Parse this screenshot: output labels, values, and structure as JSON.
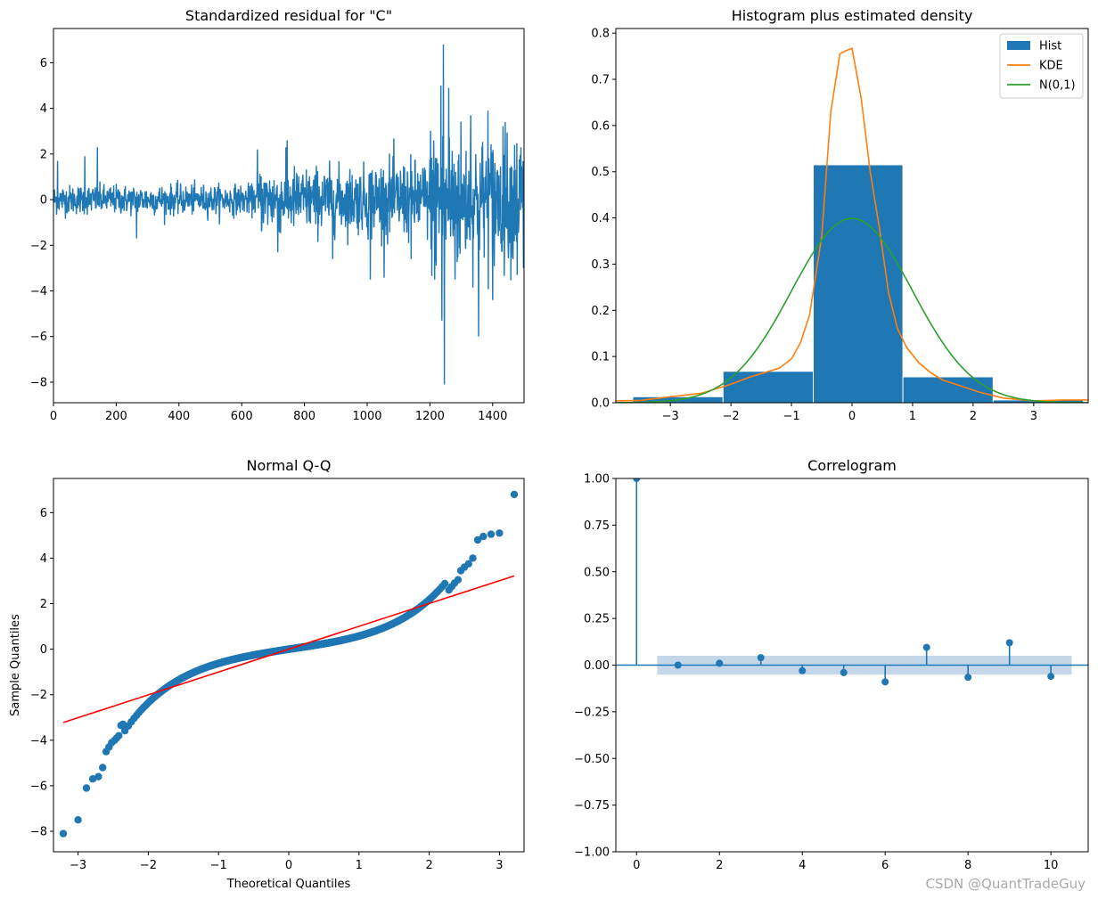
{
  "watermark": "CSDN @QuantTradeGuy",
  "chart_data": [
    {
      "type": "line",
      "title": "Standardized residual for \"C\"",
      "xlim": [
        0,
        1500
      ],
      "ylim": [
        -8.9,
        7.5
      ],
      "xticks": [
        0,
        200,
        400,
        600,
        800,
        1000,
        1200,
        1400
      ],
      "yticks": [
        -8,
        -6,
        -4,
        -2,
        0,
        2,
        4,
        6
      ],
      "color": "#1f77b4",
      "n_points": 1500,
      "notable_points": [
        {
          "x": 13,
          "y": 1.7
        },
        {
          "x": 100,
          "y": 1.9
        },
        {
          "x": 140,
          "y": 2.3
        },
        {
          "x": 265,
          "y": -1.7
        },
        {
          "x": 650,
          "y": 2.2
        },
        {
          "x": 715,
          "y": -2.3
        },
        {
          "x": 745,
          "y": 2.6
        },
        {
          "x": 890,
          "y": -2.6
        },
        {
          "x": 1010,
          "y": -3.5
        },
        {
          "x": 1140,
          "y": -2.6
        },
        {
          "x": 1215,
          "y": -3.5
        },
        {
          "x": 1235,
          "y": 5.0
        },
        {
          "x": 1238,
          "y": -5.3
        },
        {
          "x": 1243,
          "y": 6.8
        },
        {
          "x": 1246,
          "y": -8.1
        },
        {
          "x": 1260,
          "y": 4.9
        },
        {
          "x": 1280,
          "y": -3.5
        },
        {
          "x": 1330,
          "y": 3.7
        },
        {
          "x": 1355,
          "y": -6.0
        },
        {
          "x": 1385,
          "y": 3.9
        },
        {
          "x": 1400,
          "y": -4.4
        },
        {
          "x": 1440,
          "y": 3.4
        },
        {
          "x": 1470,
          "y": 2.4
        },
        {
          "x": 1478,
          "y": -3.3
        },
        {
          "x": 1490,
          "y": 2.3
        },
        {
          "x": 1498,
          "y": -3.0
        }
      ]
    },
    {
      "type": "bar",
      "title": "Histogram plus estimated density",
      "xlim": [
        -3.9,
        3.9
      ],
      "ylim": [
        0,
        0.81
      ],
      "xticks": [
        -3,
        -2,
        -1,
        0,
        1,
        2,
        3
      ],
      "yticks": [
        0.0,
        0.1,
        0.2,
        0.3,
        0.4,
        0.5,
        0.6,
        0.7,
        0.8
      ],
      "bins": [
        {
          "left": -3.62,
          "right": -2.13,
          "value": 0.013
        },
        {
          "left": -2.13,
          "right": -0.64,
          "value": 0.068
        },
        {
          "left": -0.64,
          "right": 0.84,
          "value": 0.515
        },
        {
          "left": 0.84,
          "right": 2.33,
          "value": 0.056
        },
        {
          "left": 2.33,
          "right": 3.82,
          "value": 0.006
        }
      ],
      "legend": [
        "Hist",
        "KDE",
        "N(0,1)"
      ],
      "legend_position": "upper right",
      "series": [
        {
          "name": "KDE",
          "color": "#ff7f0e",
          "x": [
            -3.9,
            -3.5,
            -3.0,
            -2.5,
            -2.0,
            -1.7,
            -1.5,
            -1.2,
            -1.0,
            -0.85,
            -0.7,
            -0.5,
            -0.35,
            -0.2,
            -0.1,
            0.0,
            0.15,
            0.3,
            0.45,
            0.6,
            0.75,
            0.9,
            1.1,
            1.3,
            1.5,
            1.8,
            2.1,
            2.5,
            3.0,
            3.5,
            3.9
          ],
          "y": [
            0.004,
            0.005,
            0.013,
            0.02,
            0.04,
            0.055,
            0.063,
            0.075,
            0.095,
            0.13,
            0.19,
            0.36,
            0.63,
            0.755,
            0.762,
            0.767,
            0.66,
            0.5,
            0.38,
            0.24,
            0.16,
            0.12,
            0.087,
            0.065,
            0.049,
            0.036,
            0.023,
            0.01,
            0.004,
            0.006,
            0.006
          ]
        },
        {
          "name": "N(0,1)",
          "color": "#2ca02c",
          "distribution": "standard normal density"
        }
      ]
    },
    {
      "type": "scatter",
      "title": "Normal Q-Q",
      "xlabel": "Theoretical Quantiles",
      "ylabel": "Sample Quantiles",
      "xlim": [
        -3.35,
        3.35
      ],
      "ylim": [
        -8.9,
        7.5
      ],
      "xticks": [
        -3,
        -2,
        -1,
        0,
        1,
        2,
        3
      ],
      "yticks": [
        -8,
        -6,
        -4,
        -2,
        0,
        2,
        4,
        6
      ],
      "marker_color": "#1f77b4",
      "reference_line": {
        "color": "#ff0000",
        "x": [
          -3.21,
          3.21
        ],
        "y": [
          -3.22,
          3.22
        ]
      },
      "tail_points": {
        "x": [
          -3.21,
          -3.0,
          -2.88,
          -2.79,
          -2.71,
          -2.65,
          -2.6,
          -2.56,
          -2.52,
          -2.48,
          -2.45,
          -2.42,
          -2.39,
          -2.36,
          2.28,
          2.32,
          2.36,
          2.41,
          2.45,
          2.5,
          2.56,
          2.62,
          2.69,
          2.77,
          2.88,
          3.0,
          3.21
        ],
        "y": [
          -8.1,
          -7.5,
          -6.1,
          -5.7,
          -5.6,
          -5.2,
          -4.5,
          -4.3,
          -4.1,
          -4.0,
          -3.9,
          -3.8,
          -3.35,
          -3.3,
          2.6,
          2.75,
          2.9,
          3.05,
          3.45,
          3.6,
          3.75,
          4.0,
          4.8,
          4.95,
          5.05,
          5.1,
          6.8
        ]
      }
    },
    {
      "type": "bar",
      "title": "Correlogram",
      "xlim": [
        -0.5,
        10.9
      ],
      "ylim": [
        -1.0,
        1.0
      ],
      "xticks": [
        0,
        2,
        4,
        6,
        8,
        10
      ],
      "yticks": [
        -1.0,
        -0.75,
        -0.5,
        -0.25,
        0.0,
        0.25,
        0.5,
        0.75,
        1.0
      ],
      "lags": [
        0,
        1,
        2,
        3,
        4,
        5,
        6,
        7,
        8,
        9,
        10
      ],
      "values": [
        1.0,
        0.0,
        0.01,
        0.04,
        -0.03,
        -0.04,
        -0.09,
        0.095,
        -0.065,
        0.12,
        -0.06
      ],
      "confidence_band": {
        "from_lag": 0.5,
        "to_lag": 10.5,
        "upper": 0.05,
        "lower": -0.05,
        "color": "#c3d6ea"
      },
      "color": "#1f77b4"
    }
  ]
}
